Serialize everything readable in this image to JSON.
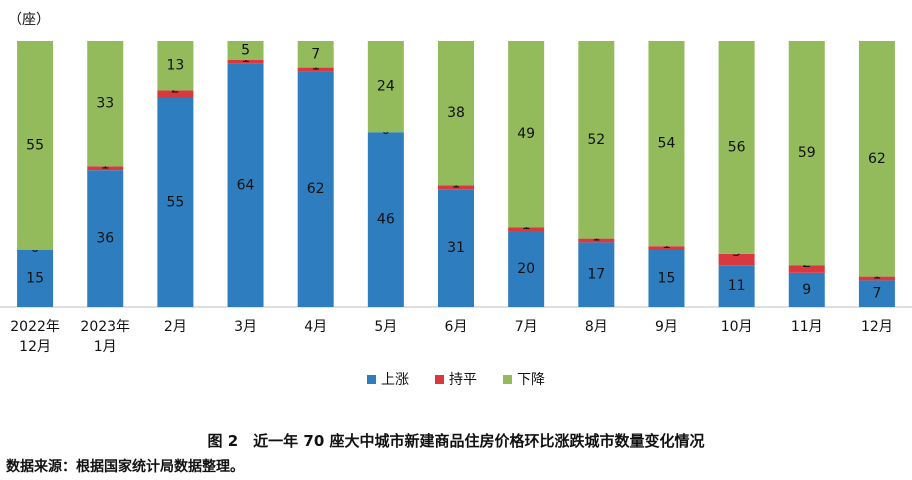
{
  "chart_data": {
    "type": "bar",
    "stacked": true,
    "percent_stacked": true,
    "unit_label": "（座）",
    "categories": [
      [
        "2022年",
        "12月"
      ],
      [
        "2023年",
        "1月"
      ],
      [
        "2月"
      ],
      [
        "3月"
      ],
      [
        "4月"
      ],
      [
        "5月"
      ],
      [
        "6月"
      ],
      [
        "7月"
      ],
      [
        "8月"
      ],
      [
        "9月"
      ],
      [
        "10月"
      ],
      [
        "11月"
      ],
      [
        "12月"
      ]
    ],
    "series": [
      {
        "name": "上涨",
        "color": "#2e7ebf",
        "values": [
          15,
          36,
          55,
          64,
          62,
          46,
          31,
          20,
          17,
          15,
          11,
          9,
          7
        ]
      },
      {
        "name": "持平",
        "color": "#d9383f",
        "values": [
          0,
          1,
          2,
          1,
          1,
          0,
          1,
          1,
          1,
          1,
          3,
          2,
          1
        ]
      },
      {
        "name": "下降",
        "color": "#93bb5b",
        "values": [
          55,
          33,
          13,
          5,
          7,
          24,
          38,
          49,
          52,
          54,
          56,
          59,
          62
        ]
      }
    ],
    "grid": false,
    "legend_position": "bottom"
  },
  "caption": "图 2　近一年 70 座大中城市新建商品住房价格环比涨跌城市数量变化情况",
  "source": "数据来源：根据国家统计局数据整理。"
}
